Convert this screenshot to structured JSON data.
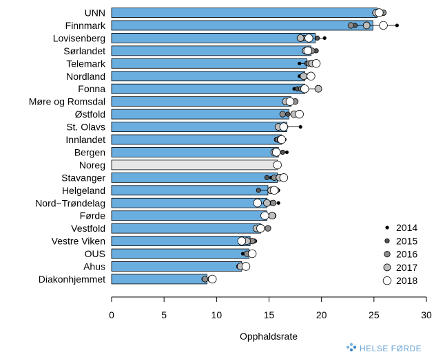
{
  "chart_data": {
    "type": "bar",
    "orientation": "horizontal",
    "xlabel": "Opphaldsrate",
    "xlim": [
      0,
      30
    ],
    "xticks": [
      0,
      5,
      10,
      15,
      20,
      25,
      30
    ],
    "grid": false,
    "legend_position": "bottom-right",
    "bar_color": "#6aaee0",
    "highlight_color": "#e6e6e6",
    "highlight_category": "Noreg",
    "legend": [
      "2014",
      "2015",
      "2016",
      "2017",
      "2018"
    ],
    "year_fills": [
      "#000000",
      "#555555",
      "#8c8c8c",
      "#bfbfbf",
      "#ffffff"
    ],
    "year_sizes": [
      2.2,
      3.2,
      4.2,
      5.0,
      5.8
    ],
    "categories": [
      "UNN",
      "Finnmark",
      "Lovisenberg",
      "Sørlandet",
      "Telemark",
      "Nordland",
      "Fonna",
      "Møre og Romsdal",
      "Østfold",
      "St. Olavs",
      "Innlandet",
      "Bergen",
      "Noreg",
      "Stavanger",
      "Helgeland",
      "Nord−Trøndelag",
      "Førde",
      "Vestfold",
      "Vestre Viken",
      "OUS",
      "Ahus",
      "Diakonhjemmet"
    ],
    "values": [
      25.3,
      24.9,
      19.4,
      19.0,
      18.6,
      18.4,
      18.4,
      17.1,
      16.9,
      16.7,
      16.2,
      15.9,
      15.8,
      15.8,
      14.9,
      14.8,
      14.8,
      14.2,
      13.2,
      13.1,
      12.4,
      9.1
    ],
    "points": [
      [
        25.0,
        25.8,
        25.9,
        25.2,
        25.5
      ],
      [
        27.2,
        23.2,
        22.8,
        24.3,
        25.9
      ],
      [
        20.3,
        19.6,
        18.3,
        18.0,
        18.8
      ],
      [
        19.3,
        19.5,
        19.1,
        18.5,
        18.7
      ],
      [
        17.9,
        18.6,
        18.8,
        19.1,
        19.5
      ],
      [
        17.9,
        18.9,
        18.8,
        18.3,
        19.0
      ],
      [
        17.4,
        17.7,
        18.1,
        19.7,
        18.4
      ],
      [
        17.5,
        17.3,
        17.5,
        16.6,
        17.0
      ],
      [
        16.4,
        16.8,
        16.3,
        17.4,
        17.9
      ],
      [
        18.0,
        16.6,
        16.5,
        15.9,
        16.4
      ],
      [
        16.5,
        15.7,
        15.9,
        16.1,
        16.2
      ],
      [
        16.7,
        16.3,
        15.8,
        15.5,
        15.7
      ],
      [
        15.9,
        15.9,
        15.8,
        15.8,
        15.8
      ],
      [
        15.2,
        14.8,
        15.5,
        16.0,
        16.4
      ],
      [
        15.9,
        14.0,
        15.7,
        15.2,
        15.5
      ],
      [
        15.9,
        15.2,
        15.4,
        14.8,
        13.9
      ],
      [
        14.4,
        14.6,
        15.4,
        15.3,
        14.6
      ],
      [
        14.4,
        14.1,
        14.9,
        13.8,
        14.2
      ],
      [
        13.7,
        13.6,
        13.4,
        12.9,
        12.4
      ],
      [
        12.5,
        13.1,
        12.9,
        13.4,
        13.4
      ],
      [
        12.3,
        12.1,
        12.5,
        12.3,
        12.8
      ],
      [
        8.9,
        8.8,
        8.9,
        9.5,
        9.6
      ]
    ]
  }
}
